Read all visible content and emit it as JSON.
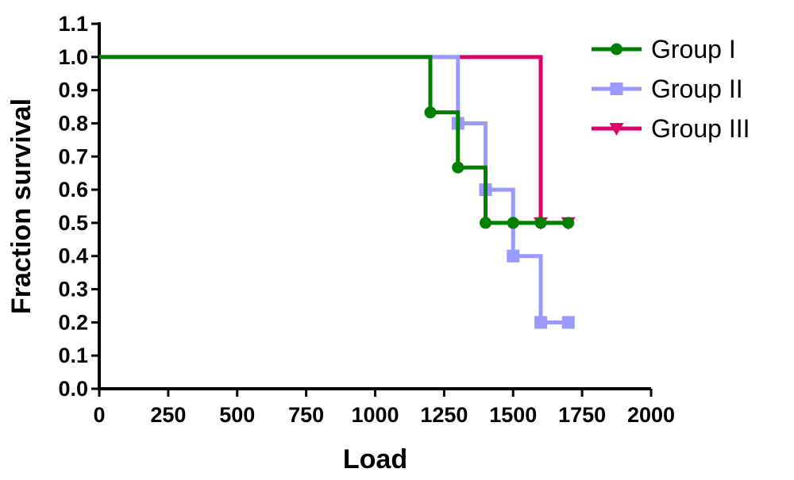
{
  "chart_data": {
    "type": "line",
    "title": "",
    "xlabel": "Load",
    "ylabel": "Fraction survival",
    "xlim": [
      0,
      2000
    ],
    "ylim": [
      0,
      1.1
    ],
    "xticks": [
      "0",
      "250",
      "500",
      "750",
      "1000",
      "1250",
      "1500",
      "1750",
      "2000"
    ],
    "yticks": [
      "0.0",
      "0.1",
      "0.2",
      "0.3",
      "0.4",
      "0.5",
      "0.6",
      "0.7",
      "0.8",
      "0.9",
      "1.0",
      "1.1"
    ],
    "grid": false,
    "legend_position": "top-right",
    "series": [
      {
        "name": "Group I",
        "color": "#008000",
        "marker": "circle",
        "step": true,
        "points": [
          [
            0,
            1.0
          ],
          [
            1200,
            0.833
          ],
          [
            1300,
            0.667
          ],
          [
            1400,
            0.5
          ],
          [
            1500,
            0.5
          ],
          [
            1600,
            0.5
          ],
          [
            1700,
            0.5
          ]
        ],
        "censored_markers": [
          [
            1200,
            0.833
          ],
          [
            1300,
            0.667
          ],
          [
            1400,
            0.5
          ],
          [
            1500,
            0.5
          ],
          [
            1600,
            0.5
          ],
          [
            1700,
            0.5
          ]
        ]
      },
      {
        "name": "Group II",
        "color": "#9999ff",
        "marker": "square",
        "step": true,
        "points": [
          [
            0,
            1.0
          ],
          [
            1300,
            0.8
          ],
          [
            1400,
            0.6
          ],
          [
            1500,
            0.4
          ],
          [
            1600,
            0.2
          ],
          [
            1700,
            0.2
          ]
        ],
        "censored_markers": [
          [
            1300,
            0.8
          ],
          [
            1400,
            0.6
          ],
          [
            1500,
            0.4
          ],
          [
            1600,
            0.2
          ],
          [
            1700,
            0.2
          ]
        ]
      },
      {
        "name": "Group  III",
        "color": "#e0006a",
        "marker": "triangle-down",
        "step": true,
        "points": [
          [
            0,
            1.0
          ],
          [
            1600,
            0.5
          ],
          [
            1700,
            0.5
          ]
        ],
        "censored_markers": [
          [
            1600,
            0.5
          ],
          [
            1700,
            0.5
          ]
        ]
      }
    ]
  }
}
